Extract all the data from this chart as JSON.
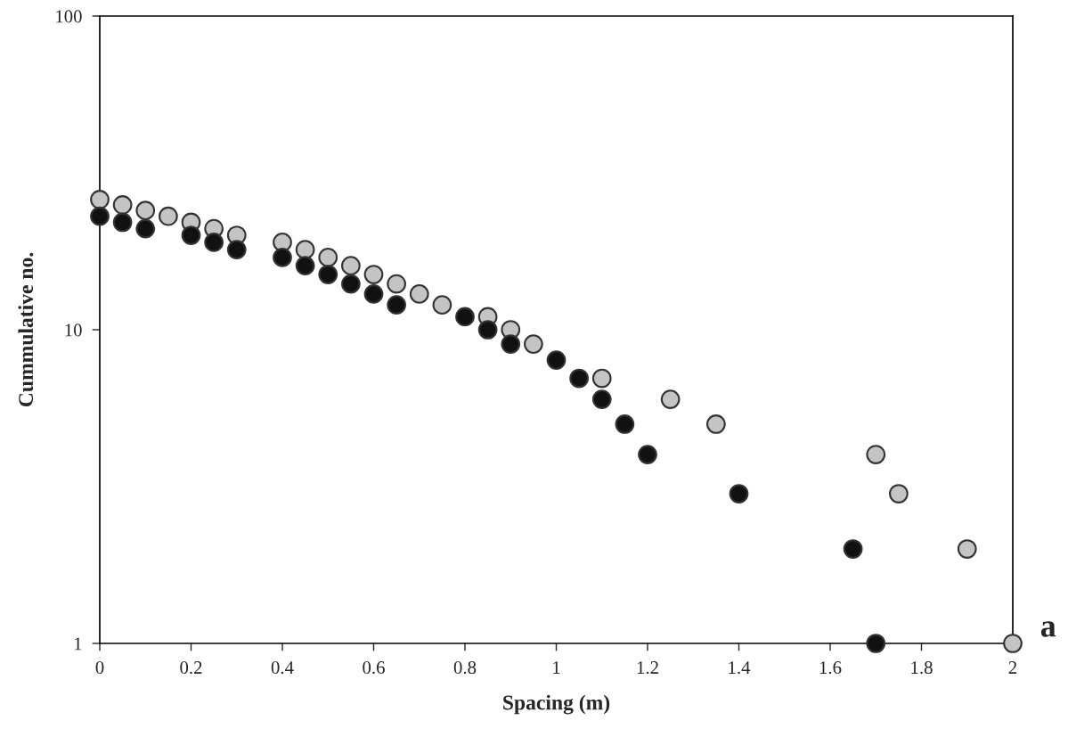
{
  "chart_data": {
    "type": "scatter",
    "xlabel": "Spacing (m)",
    "ylabel": "Cummulative no.",
    "log": "y",
    "xlim": [
      0,
      2
    ],
    "xticks": [
      0,
      0.2,
      0.4,
      0.6,
      0.8,
      1,
      1.2,
      1.4,
      1.6,
      1.8,
      2
    ],
    "ylim": [
      1,
      100
    ],
    "yticks": [
      1,
      10,
      100
    ],
    "grid": false,
    "marker": "circle",
    "annotations": [
      "a"
    ],
    "series": [
      {
        "color": "#c4c4c4",
        "x": [
          0,
          0.05,
          0.1,
          0.15,
          0.2,
          0.25,
          0.3,
          0.4,
          0.45,
          0.5,
          0.55,
          0.6,
          0.65,
          0.7,
          0.75,
          0.85,
          0.9,
          0.95,
          1.1,
          1.25,
          1.35,
          1.7,
          1.75,
          1.9,
          2
        ],
        "values": [
          26,
          25,
          24,
          23,
          22,
          21,
          20,
          19,
          18,
          17,
          16,
          15,
          14,
          13,
          12,
          11,
          10,
          9,
          7,
          6,
          5,
          4,
          3,
          2,
          1
        ]
      },
      {
        "color": "#111111",
        "x": [
          0,
          0.05,
          0.1,
          0.2,
          0.25,
          0.3,
          0.4,
          0.45,
          0.5,
          0.55,
          0.6,
          0.65,
          0.8,
          0.85,
          0.9,
          1,
          1.05,
          1.1,
          1.15,
          1.2,
          1.4,
          1.65,
          1.7
        ],
        "values": [
          23,
          22,
          21,
          20,
          19,
          18,
          17,
          16,
          15,
          14,
          13,
          12,
          11,
          10,
          9,
          8,
          7,
          6,
          5,
          4,
          3,
          2,
          1
        ]
      }
    ]
  }
}
